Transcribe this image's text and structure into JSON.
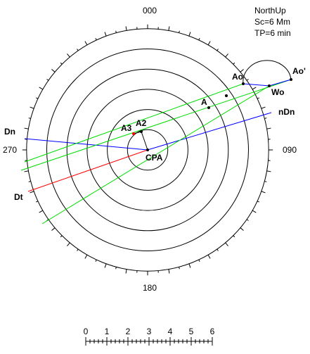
{
  "compass": {
    "north": "000",
    "east": "090",
    "south": "180",
    "west": "270"
  },
  "info": {
    "mode": "NorthUp",
    "scale": "Sc=6 Mm",
    "time": "TP=6 min"
  },
  "points": {
    "cpa": "CPA",
    "a2": "A2",
    "a3": "A3",
    "a": "A",
    "ao": "Ao",
    "ao_prime": "Ao'",
    "wo": "Wo",
    "dn": "Dn",
    "dt": "Dt",
    "ndn": "nDn"
  },
  "scale_bar": {
    "labels": [
      "0",
      "1",
      "2",
      "3",
      "4",
      "5",
      "6"
    ]
  }
}
